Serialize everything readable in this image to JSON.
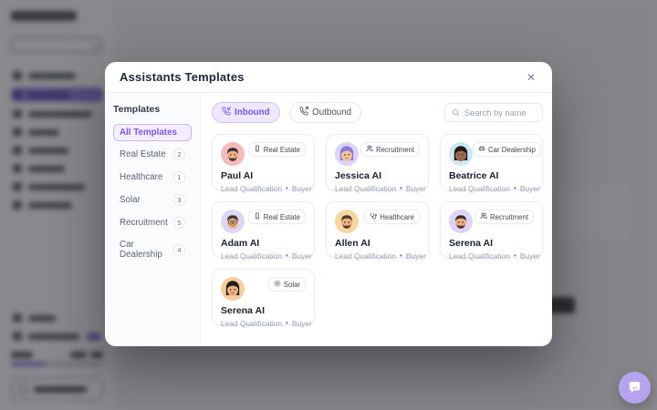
{
  "modal": {
    "title": "Assistants Templates",
    "close_icon": "✕"
  },
  "templates_panel": {
    "heading": "Templates",
    "items": [
      {
        "label": "All Templates",
        "count": "",
        "selected": true
      },
      {
        "label": "Real Estate",
        "count": "2",
        "selected": false
      },
      {
        "label": "Healthcare",
        "count": "1",
        "selected": false
      },
      {
        "label": "Solar",
        "count": "3",
        "selected": false
      },
      {
        "label": "Recruitment",
        "count": "5",
        "selected": false
      },
      {
        "label": "Car Dealership",
        "count": "4",
        "selected": false
      }
    ]
  },
  "filters": [
    {
      "label": "Inbound",
      "icon": "phone-incoming-icon",
      "active": true
    },
    {
      "label": "Outbound",
      "icon": "phone-outgoing-icon",
      "active": false
    }
  ],
  "search": {
    "placeholder": "Search by name",
    "icon": "search-icon"
  },
  "card_separator": "•",
  "cards": [
    {
      "name": "Paul AI",
      "badge": "Real Estate",
      "badge_icon": "building-icon",
      "role": "Lead Qualification",
      "type": "Buyer",
      "avatar": {
        "bg": "#f5baba",
        "skin": "#edb286",
        "hair": "#33302c",
        "beard": true,
        "glasses": false,
        "long_hair": false
      }
    },
    {
      "name": "Jessica AI",
      "badge": "Recruitment",
      "badge_icon": "users-icon",
      "role": "Lead Qualification",
      "type": "Buyer",
      "avatar": {
        "bg": "#ddd3f8",
        "skin": "#f2c39a",
        "hair": "#8d79d8",
        "beard": false,
        "glasses": false,
        "long_hair": true
      }
    },
    {
      "name": "Beatrice AI",
      "badge": "Car Dealership",
      "badge_icon": "car-icon",
      "role": "Lead Qualification",
      "type": "Buyer",
      "avatar": {
        "bg": "#cfe6f5",
        "skin": "#9c6b4e",
        "hair": "#1f1b18",
        "beard": false,
        "glasses": false,
        "long_hair": true
      }
    },
    {
      "name": "Adam AI",
      "badge": "Real Estate",
      "badge_icon": "building-icon",
      "role": "Lead Qualification",
      "type": "Buyer",
      "avatar": {
        "bg": "#ded5f8",
        "skin": "#eeb488",
        "hair": "#3a332d",
        "beard": false,
        "glasses": true,
        "long_hair": false
      }
    },
    {
      "name": "Allen AI",
      "badge": "Healthcare",
      "badge_icon": "stethoscope-icon",
      "role": "Lead Qualification",
      "type": "Buyer",
      "avatar": {
        "bg": "#f7d6a4",
        "skin": "#edb086",
        "hair": "#4a3b2d",
        "beard": true,
        "glasses": false,
        "long_hair": false
      }
    },
    {
      "name": "Serena AI",
      "badge": "Recruitment",
      "badge_icon": "users-icon",
      "role": "Lead Qualification",
      "type": "Buyer",
      "avatar": {
        "bg": "#ddd3f8",
        "skin": "#edb086",
        "hair": "#3a2f28",
        "beard": true,
        "glasses": false,
        "long_hair": false
      }
    },
    {
      "name": "Serena AI",
      "badge": "Solar",
      "badge_icon": "sun-icon",
      "role": "Lead Qualification",
      "type": "Buyer",
      "avatar": {
        "bg": "#f7cf9e",
        "skin": "#edb086",
        "hair": "#241f1c",
        "beard": false,
        "glasses": false,
        "long_hair": true
      }
    }
  ],
  "colors": {
    "accent": "#7a55f2",
    "accent_light_bg": "#eee7fd",
    "accent_border": "#d3c2fa",
    "fab_bg": "#b5a3ee"
  },
  "chat_button": {
    "icon": "chat-bubble-icon"
  }
}
